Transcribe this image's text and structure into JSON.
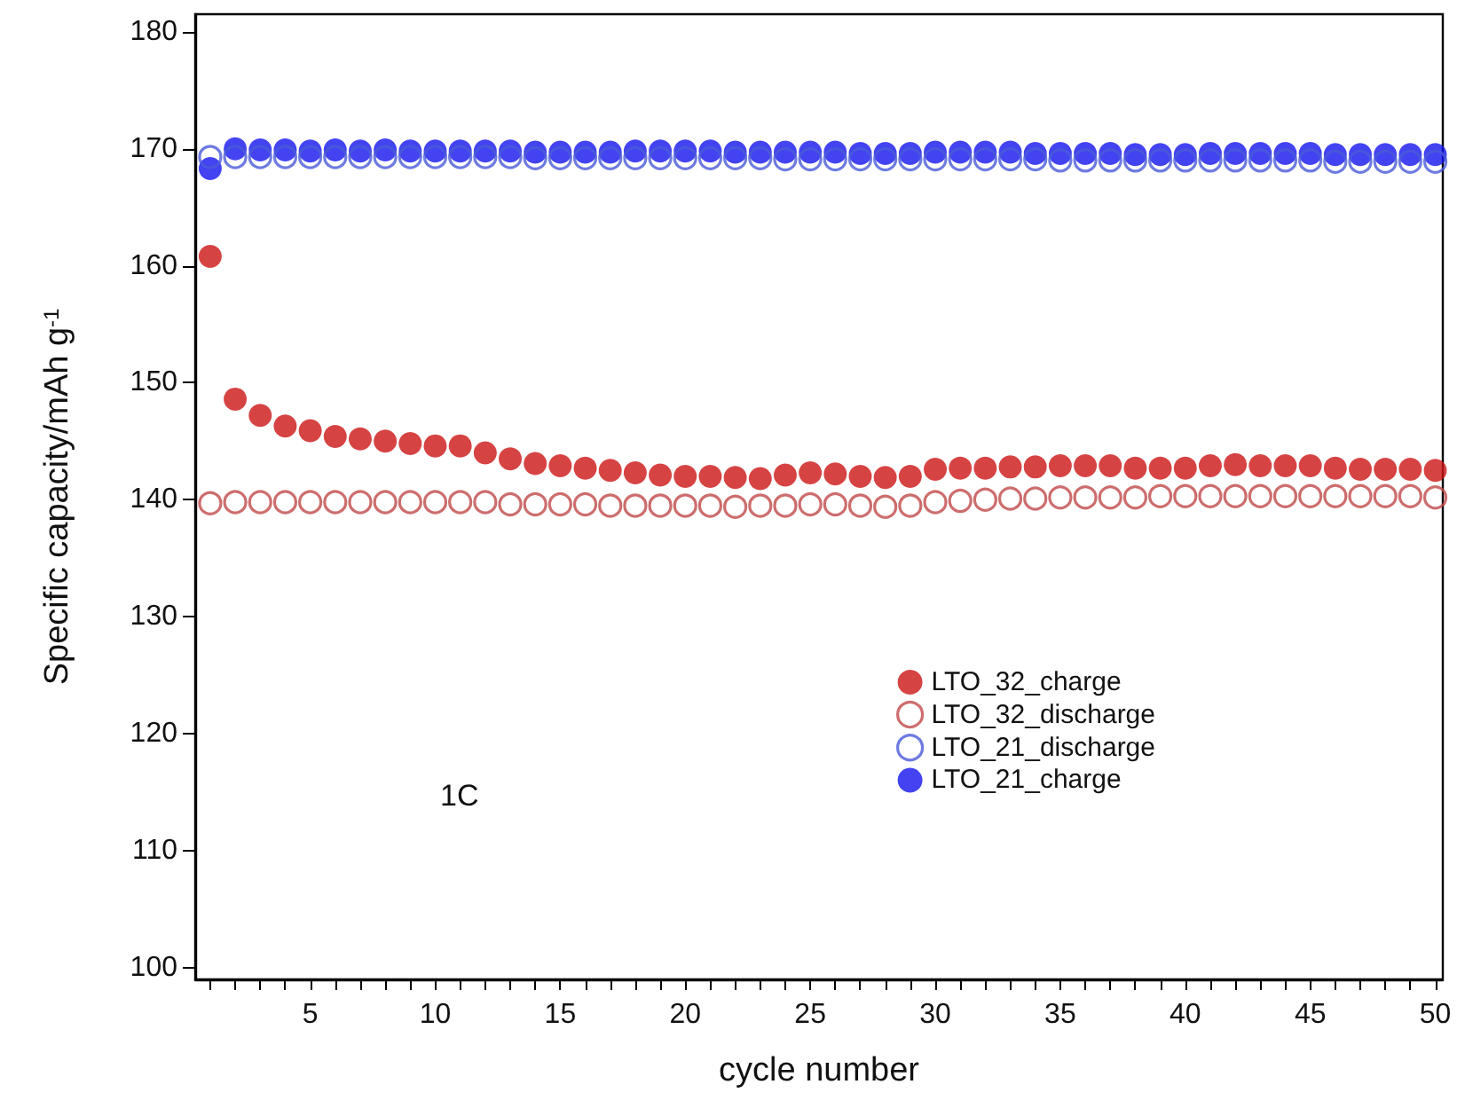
{
  "chart_data": {
    "type": "scatter",
    "xlabel": "cycle number",
    "ylabel": "Specific capacity/mAh g$^{-1}$",
    "x": [
      1,
      2,
      3,
      4,
      5,
      6,
      7,
      8,
      9,
      10,
      11,
      12,
      13,
      14,
      15,
      16,
      17,
      18,
      19,
      20,
      21,
      22,
      23,
      24,
      25,
      26,
      27,
      28,
      29,
      30,
      31,
      32,
      33,
      34,
      35,
      36,
      37,
      38,
      39,
      40,
      41,
      42,
      43,
      44,
      45,
      46,
      47,
      48,
      49,
      50
    ],
    "xlim": [
      0.4,
      50.3
    ],
    "ylim": [
      99,
      181.5
    ],
    "xticks": [
      {
        "value": 1,
        "label": null
      },
      {
        "value": 2,
        "label": null
      },
      {
        "value": 3,
        "label": null
      },
      {
        "value": 4,
        "label": null
      },
      5,
      {
        "value": 6,
        "label": null
      },
      {
        "value": 7,
        "label": null
      },
      {
        "value": 8,
        "label": null
      },
      {
        "value": 9,
        "label": null
      },
      10,
      {
        "value": 11,
        "label": null
      },
      {
        "value": 12,
        "label": null
      },
      {
        "value": 13,
        "label": null
      },
      {
        "value": 14,
        "label": null
      },
      15,
      {
        "value": 16,
        "label": null
      },
      {
        "value": 17,
        "label": null
      },
      {
        "value": 18,
        "label": null
      },
      {
        "value": 19,
        "label": null
      },
      20,
      {
        "value": 21,
        "label": null
      },
      {
        "value": 22,
        "label": null
      },
      {
        "value": 23,
        "label": null
      },
      {
        "value": 24,
        "label": null
      },
      25,
      {
        "value": 26,
        "label": null
      },
      {
        "value": 27,
        "label": null
      },
      {
        "value": 28,
        "label": null
      },
      {
        "value": 29,
        "label": null
      },
      30,
      {
        "value": 31,
        "label": null
      },
      {
        "value": 32,
        "label": null
      },
      {
        "value": 33,
        "label": null
      },
      {
        "value": 34,
        "label": null
      },
      35,
      {
        "value": 36,
        "label": null
      },
      {
        "value": 37,
        "label": null
      },
      {
        "value": 38,
        "label": null
      },
      {
        "value": 39,
        "label": null
      },
      40,
      {
        "value": 41,
        "label": null
      },
      {
        "value": 42,
        "label": null
      },
      {
        "value": 43,
        "label": null
      },
      {
        "value": 44,
        "label": null
      },
      45,
      {
        "value": 46,
        "label": null
      },
      {
        "value": 47,
        "label": null
      },
      {
        "value": 48,
        "label": null
      },
      {
        "value": 49,
        "label": null
      },
      50
    ],
    "yticks": [
      100,
      110,
      120,
      130,
      140,
      150,
      160,
      170,
      180
    ],
    "marker": "circle",
    "grid": false,
    "legend": "right",
    "annotations": [
      "1C"
    ],
    "series": [
      {
        "name": "LTO_32_charge",
        "color": "#cc1414",
        "values": [
          160.8,
          148.6,
          147.2,
          146.3,
          145.9,
          145.4,
          145.2,
          145.0,
          144.8,
          144.6,
          144.6,
          144.0,
          143.5,
          143.1,
          142.9,
          142.7,
          142.5,
          142.3,
          142.1,
          142.0,
          142.0,
          141.9,
          141.8,
          142.1,
          142.3,
          142.2,
          142.0,
          141.9,
          142.0,
          142.6,
          142.7,
          142.7,
          142.8,
          142.8,
          142.9,
          142.9,
          142.9,
          142.7,
          142.7,
          142.7,
          142.9,
          143.0,
          142.9,
          142.9,
          142.9,
          142.7,
          142.6,
          142.6,
          142.6,
          142.5
        ]
      },
      {
        "name": "LTO_32_discharge",
        "color": "#c04848",
        "marker": "open-circle",
        "values": [
          139.7,
          139.8,
          139.8,
          139.8,
          139.8,
          139.8,
          139.8,
          139.8,
          139.8,
          139.8,
          139.8,
          139.8,
          139.6,
          139.6,
          139.6,
          139.6,
          139.5,
          139.5,
          139.5,
          139.5,
          139.5,
          139.4,
          139.5,
          139.5,
          139.6,
          139.6,
          139.5,
          139.4,
          139.5,
          139.8,
          139.9,
          140.0,
          140.1,
          140.1,
          140.2,
          140.2,
          140.2,
          140.2,
          140.3,
          140.3,
          140.3,
          140.3,
          140.3,
          140.3,
          140.3,
          140.3,
          140.3,
          140.3,
          140.3,
          140.2
        ]
      },
      {
        "name": "LTO_21_discharge",
        "color": "#4a5ad8",
        "marker": "open-circle",
        "values": [
          169.3,
          169.3,
          169.3,
          169.3,
          169.3,
          169.3,
          169.3,
          169.3,
          169.3,
          169.3,
          169.3,
          169.3,
          169.3,
          169.2,
          169.2,
          169.2,
          169.2,
          169.2,
          169.2,
          169.2,
          169.2,
          169.2,
          169.2,
          169.1,
          169.1,
          169.1,
          169.1,
          169.1,
          169.1,
          169.1,
          169.1,
          169.1,
          169.1,
          169.1,
          169.0,
          169.0,
          169.0,
          169.0,
          169.0,
          169.0,
          169.0,
          169.0,
          169.0,
          169.0,
          169.0,
          168.9,
          168.9,
          168.9,
          168.9,
          168.9
        ]
      },
      {
        "name": "LTO_21_charge",
        "color": "#1414ee",
        "values": [
          168.3,
          170.0,
          169.9,
          169.9,
          169.8,
          169.9,
          169.8,
          169.9,
          169.8,
          169.8,
          169.8,
          169.8,
          169.8,
          169.7,
          169.7,
          169.7,
          169.7,
          169.8,
          169.8,
          169.8,
          169.8,
          169.7,
          169.7,
          169.7,
          169.7,
          169.7,
          169.6,
          169.6,
          169.6,
          169.7,
          169.7,
          169.7,
          169.7,
          169.6,
          169.6,
          169.6,
          169.6,
          169.5,
          169.5,
          169.5,
          169.6,
          169.6,
          169.6,
          169.6,
          169.6,
          169.5,
          169.5,
          169.5,
          169.5,
          169.5
        ]
      }
    ]
  }
}
